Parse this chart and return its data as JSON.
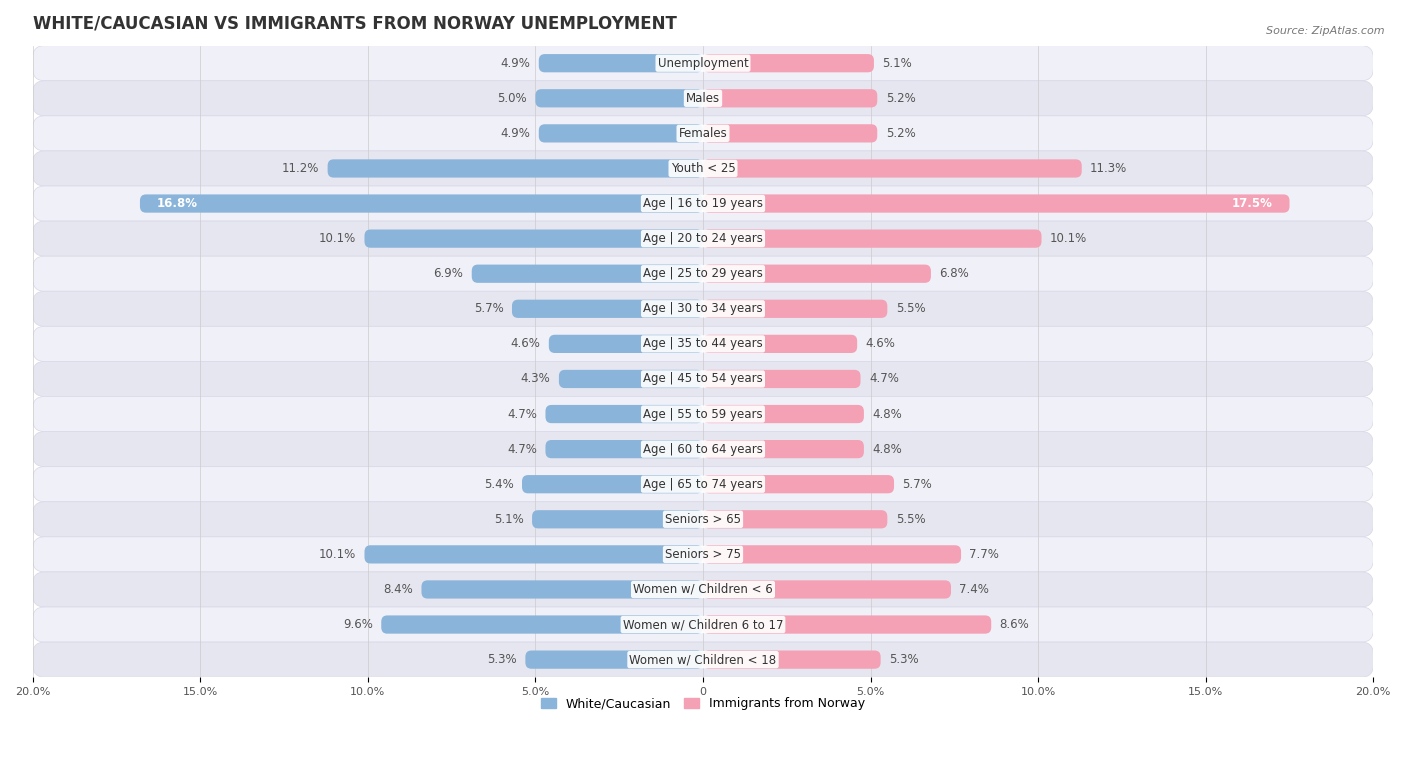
{
  "title": "WHITE/CAUCASIAN VS IMMIGRANTS FROM NORWAY UNEMPLOYMENT",
  "source": "Source: ZipAtlas.com",
  "categories": [
    "Unemployment",
    "Males",
    "Females",
    "Youth < 25",
    "Age | 16 to 19 years",
    "Age | 20 to 24 years",
    "Age | 25 to 29 years",
    "Age | 30 to 34 years",
    "Age | 35 to 44 years",
    "Age | 45 to 54 years",
    "Age | 55 to 59 years",
    "Age | 60 to 64 years",
    "Age | 65 to 74 years",
    "Seniors > 65",
    "Seniors > 75",
    "Women w/ Children < 6",
    "Women w/ Children 6 to 17",
    "Women w/ Children < 18"
  ],
  "white_values": [
    4.9,
    5.0,
    4.9,
    11.2,
    16.8,
    10.1,
    6.9,
    5.7,
    4.6,
    4.3,
    4.7,
    4.7,
    5.4,
    5.1,
    10.1,
    8.4,
    9.6,
    5.3
  ],
  "norway_values": [
    5.1,
    5.2,
    5.2,
    11.3,
    17.5,
    10.1,
    6.8,
    5.5,
    4.6,
    4.7,
    4.8,
    4.8,
    5.7,
    5.5,
    7.7,
    7.4,
    8.6,
    5.3
  ],
  "white_color": "#8ab4d9",
  "norway_color": "#f4a0b5",
  "white_label": "White/Caucasian",
  "norway_label": "Immigrants from Norway",
  "max_val": 20.0,
  "bar_height": 0.52,
  "row_bg_light": "#f2f2f7",
  "row_bg_dark": "#e8e8f0",
  "title_fontsize": 12,
  "label_fontsize": 8.5,
  "value_fontsize": 8.5,
  "legend_fontsize": 9,
  "tick_fontsize": 8
}
